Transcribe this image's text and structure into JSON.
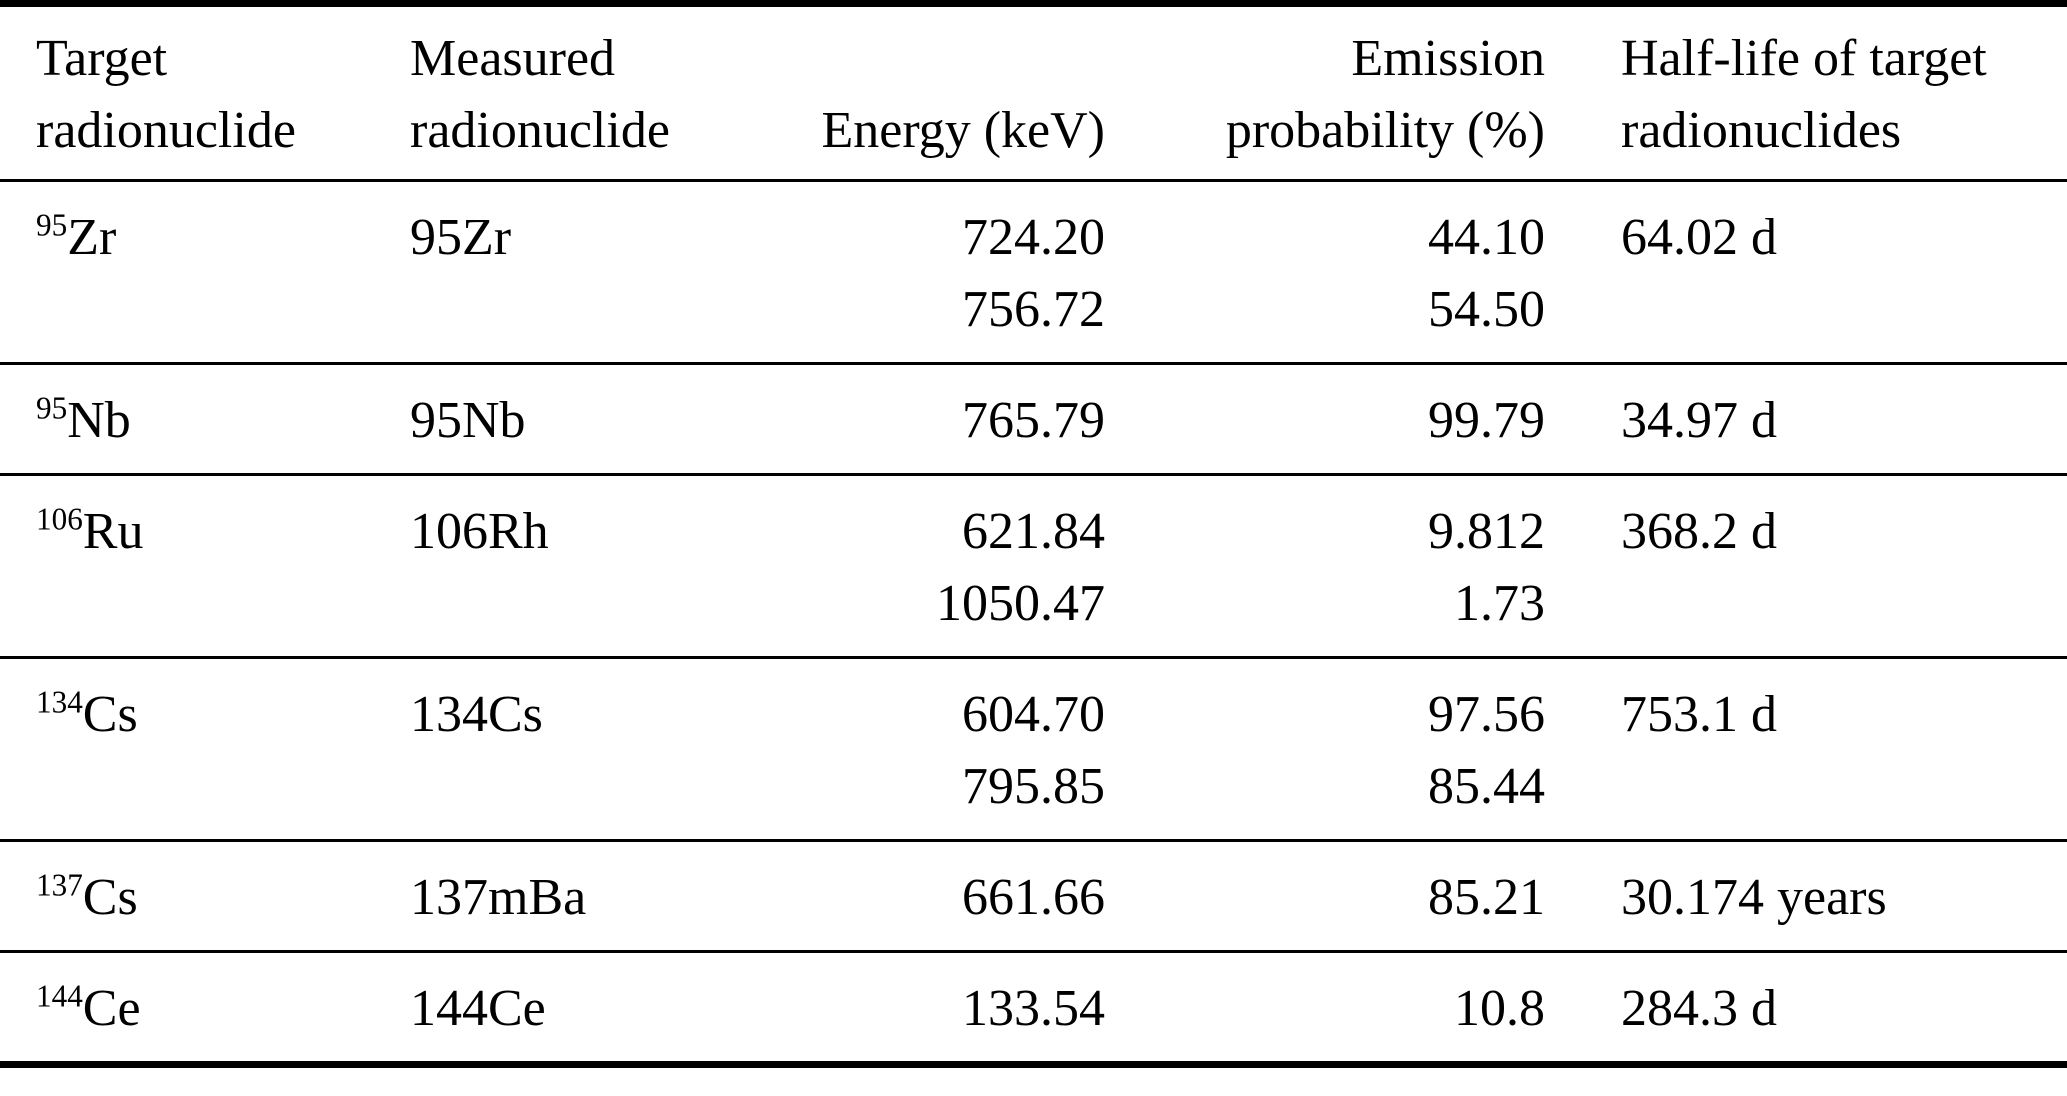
{
  "table": {
    "headers": [
      {
        "lines": [
          "Target",
          "radionuclide"
        ]
      },
      {
        "lines": [
          "Measured",
          "radionuclide"
        ]
      },
      {
        "lines": [
          "Energy (keV)"
        ]
      },
      {
        "lines": [
          "Emission",
          "probability (%)"
        ]
      },
      {
        "lines": [
          "Half-life of target",
          "radionuclides"
        ]
      }
    ],
    "rows": [
      {
        "target_mass": "95",
        "target_symbol": "Zr",
        "measured": "95Zr",
        "energies": [
          "724.20",
          "756.72"
        ],
        "probabilities": [
          "44.10",
          "54.50"
        ],
        "half_life": "64.02 d"
      },
      {
        "target_mass": "95",
        "target_symbol": "Nb",
        "measured": "95Nb",
        "energies": [
          "765.79"
        ],
        "probabilities": [
          "99.79"
        ],
        "half_life": "34.97 d"
      },
      {
        "target_mass": "106",
        "target_symbol": "Ru",
        "measured": "106Rh",
        "energies": [
          "621.84",
          "1050.47"
        ],
        "probabilities": [
          "9.812",
          "1.73"
        ],
        "half_life": "368.2 d"
      },
      {
        "target_mass": "134",
        "target_symbol": "Cs",
        "measured": "134Cs",
        "energies": [
          "604.70",
          "795.85"
        ],
        "probabilities": [
          "97.56",
          "85.44"
        ],
        "half_life": "753.1 d"
      },
      {
        "target_mass": "137",
        "target_symbol": "Cs",
        "measured": "137mBa",
        "energies": [
          "661.66"
        ],
        "probabilities": [
          "85.21"
        ],
        "half_life": "30.174 years"
      },
      {
        "target_mass": "144",
        "target_symbol": "Ce",
        "measured": "144Ce",
        "energies": [
          "133.54"
        ],
        "probabilities": [
          "10.8"
        ],
        "half_life": "284.3 d"
      }
    ]
  }
}
